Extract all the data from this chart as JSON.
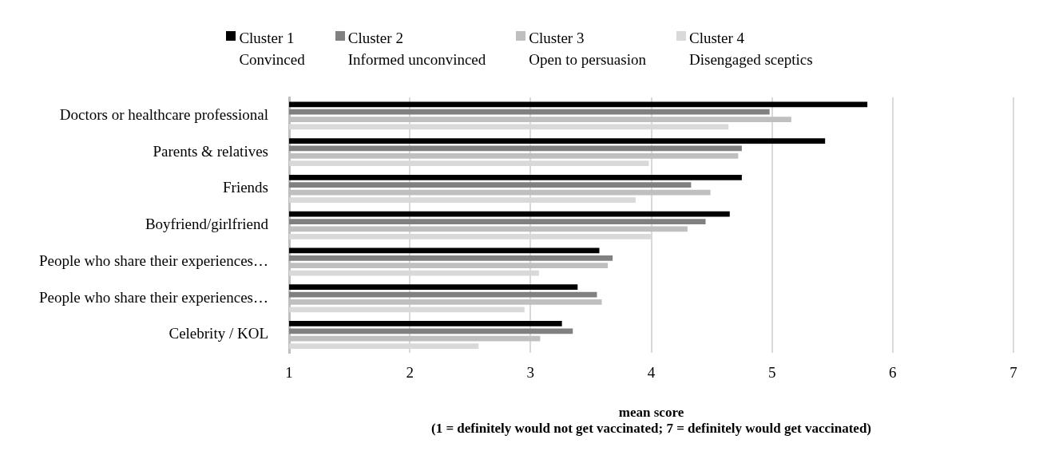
{
  "chart_data": {
    "type": "bar",
    "orientation": "horizontal",
    "categories": [
      "Doctors or healthcare professional",
      "Parents & relatives",
      "Friends",
      "Boyfriend/girlfriend",
      "People who share their experiences…",
      "People who share their experiences…",
      "Celebrity / KOL"
    ],
    "series": [
      {
        "name": "Cluster 1\nConvinced",
        "color": "#000000",
        "values": [
          5.79,
          5.44,
          4.75,
          4.65,
          3.57,
          3.39,
          3.26
        ]
      },
      {
        "name": "Cluster 2\nInformed unconvinced",
        "color": "#808080",
        "values": [
          4.98,
          4.75,
          4.33,
          4.45,
          3.68,
          3.55,
          3.35
        ]
      },
      {
        "name": "Cluster 3\nOpen to persuasion",
        "color": "#bfbfbf",
        "values": [
          5.16,
          4.72,
          4.49,
          4.3,
          3.64,
          3.59,
          3.08
        ]
      },
      {
        "name": "Cluster 4\nDisengaged sceptics",
        "color": "#d9d9d9",
        "values": [
          4.64,
          3.98,
          3.87,
          4.0,
          3.07,
          2.95,
          2.57
        ]
      }
    ],
    "xlim": [
      1,
      7
    ],
    "xticks": [
      1,
      2,
      3,
      4,
      5,
      6,
      7
    ],
    "xlabel": "mean score\n(1 = definitely would not get vaccinated; 7 = definitely would get vaccinated)",
    "grid": "x",
    "legend": "top"
  }
}
